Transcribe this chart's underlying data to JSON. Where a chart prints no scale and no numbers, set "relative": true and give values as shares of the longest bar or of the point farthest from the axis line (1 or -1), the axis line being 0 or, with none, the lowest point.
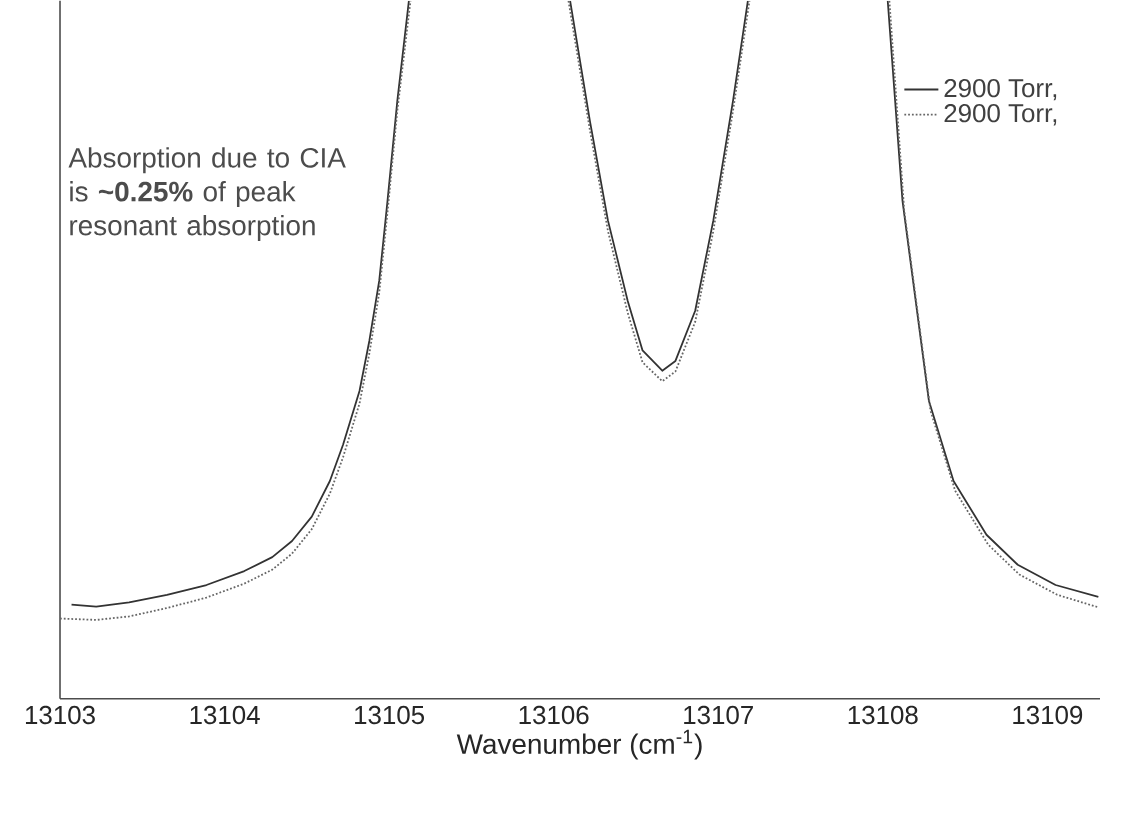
{
  "chart_data": {
    "type": "line",
    "relative": true,
    "xlabel": "Wavenumber (cm$^{-1}$)",
    "xlim": [
      13103,
      13109.32
    ],
    "xticks": [
      13103,
      13104,
      13105,
      13106,
      13107,
      13108,
      13109
    ],
    "tick_labels": "x",
    "grid": false,
    "legend": "top right",
    "marker": "none",
    "annotations": [
      "Absorption due to CIA is **~0.25%** of peak resonant absorption"
    ],
    "series": [
      {
        "name": "2900 Torr,",
        "color": "#333333",
        "line_style": "solid",
        "x": [
          13103.07,
          13103.22,
          13103.42,
          13103.65,
          13103.89,
          13104.12,
          13104.29,
          13104.41,
          13104.53,
          13104.64,
          13104.72,
          13104.82,
          13104.88,
          13104.94,
          13104.99,
          13105.05,
          13105.12,
          13105.6,
          13106.1,
          13106.22,
          13106.33,
          13106.45,
          13106.54,
          13106.66,
          13106.74,
          13106.86,
          13106.97,
          13107.09,
          13107.18,
          13107.6,
          13108.03,
          13108.12,
          13108.28,
          13108.43,
          13108.63,
          13108.82,
          13109.05,
          13109.31
        ],
        "values": [
          0.135,
          0.132,
          0.138,
          0.149,
          0.163,
          0.183,
          0.203,
          0.226,
          0.261,
          0.312,
          0.364,
          0.441,
          0.513,
          0.599,
          0.713,
          0.857,
          1,
          null,
          1,
          0.828,
          0.685,
          0.57,
          0.499,
          0.47,
          0.484,
          0.556,
          0.685,
          0.857,
          1,
          null,
          1,
          0.713,
          0.427,
          0.312,
          0.235,
          0.192,
          0.163,
          0.146
        ]
      },
      {
        "name": "2900 Torr,",
        "color": "#666666",
        "line_style": "dotted",
        "x": [
          13103.0,
          13103.22,
          13103.42,
          13103.65,
          13103.89,
          13104.12,
          13104.29,
          13104.41,
          13104.53,
          13104.64,
          13104.72,
          13104.82,
          13104.88,
          13104.94,
          13104.99,
          13105.05,
          13105.13,
          13105.6,
          13106.09,
          13106.22,
          13106.33,
          13106.45,
          13106.54,
          13106.66,
          13106.74,
          13106.86,
          13106.97,
          13107.09,
          13107.19,
          13107.6,
          13108.04,
          13108.13,
          13108.29,
          13108.44,
          13108.64,
          13108.83,
          13109.06,
          13109.31
        ],
        "values": [
          0.115,
          0.113,
          0.118,
          0.13,
          0.145,
          0.165,
          0.185,
          0.208,
          0.243,
          0.294,
          0.346,
          0.423,
          0.495,
          0.582,
          0.697,
          0.843,
          1,
          null,
          1,
          0.815,
          0.67,
          0.553,
          0.482,
          0.455,
          0.469,
          0.54,
          0.67,
          0.843,
          1,
          null,
          1,
          0.7,
          0.413,
          0.298,
          0.221,
          0.178,
          0.149,
          0.131
        ]
      }
    ]
  }
}
